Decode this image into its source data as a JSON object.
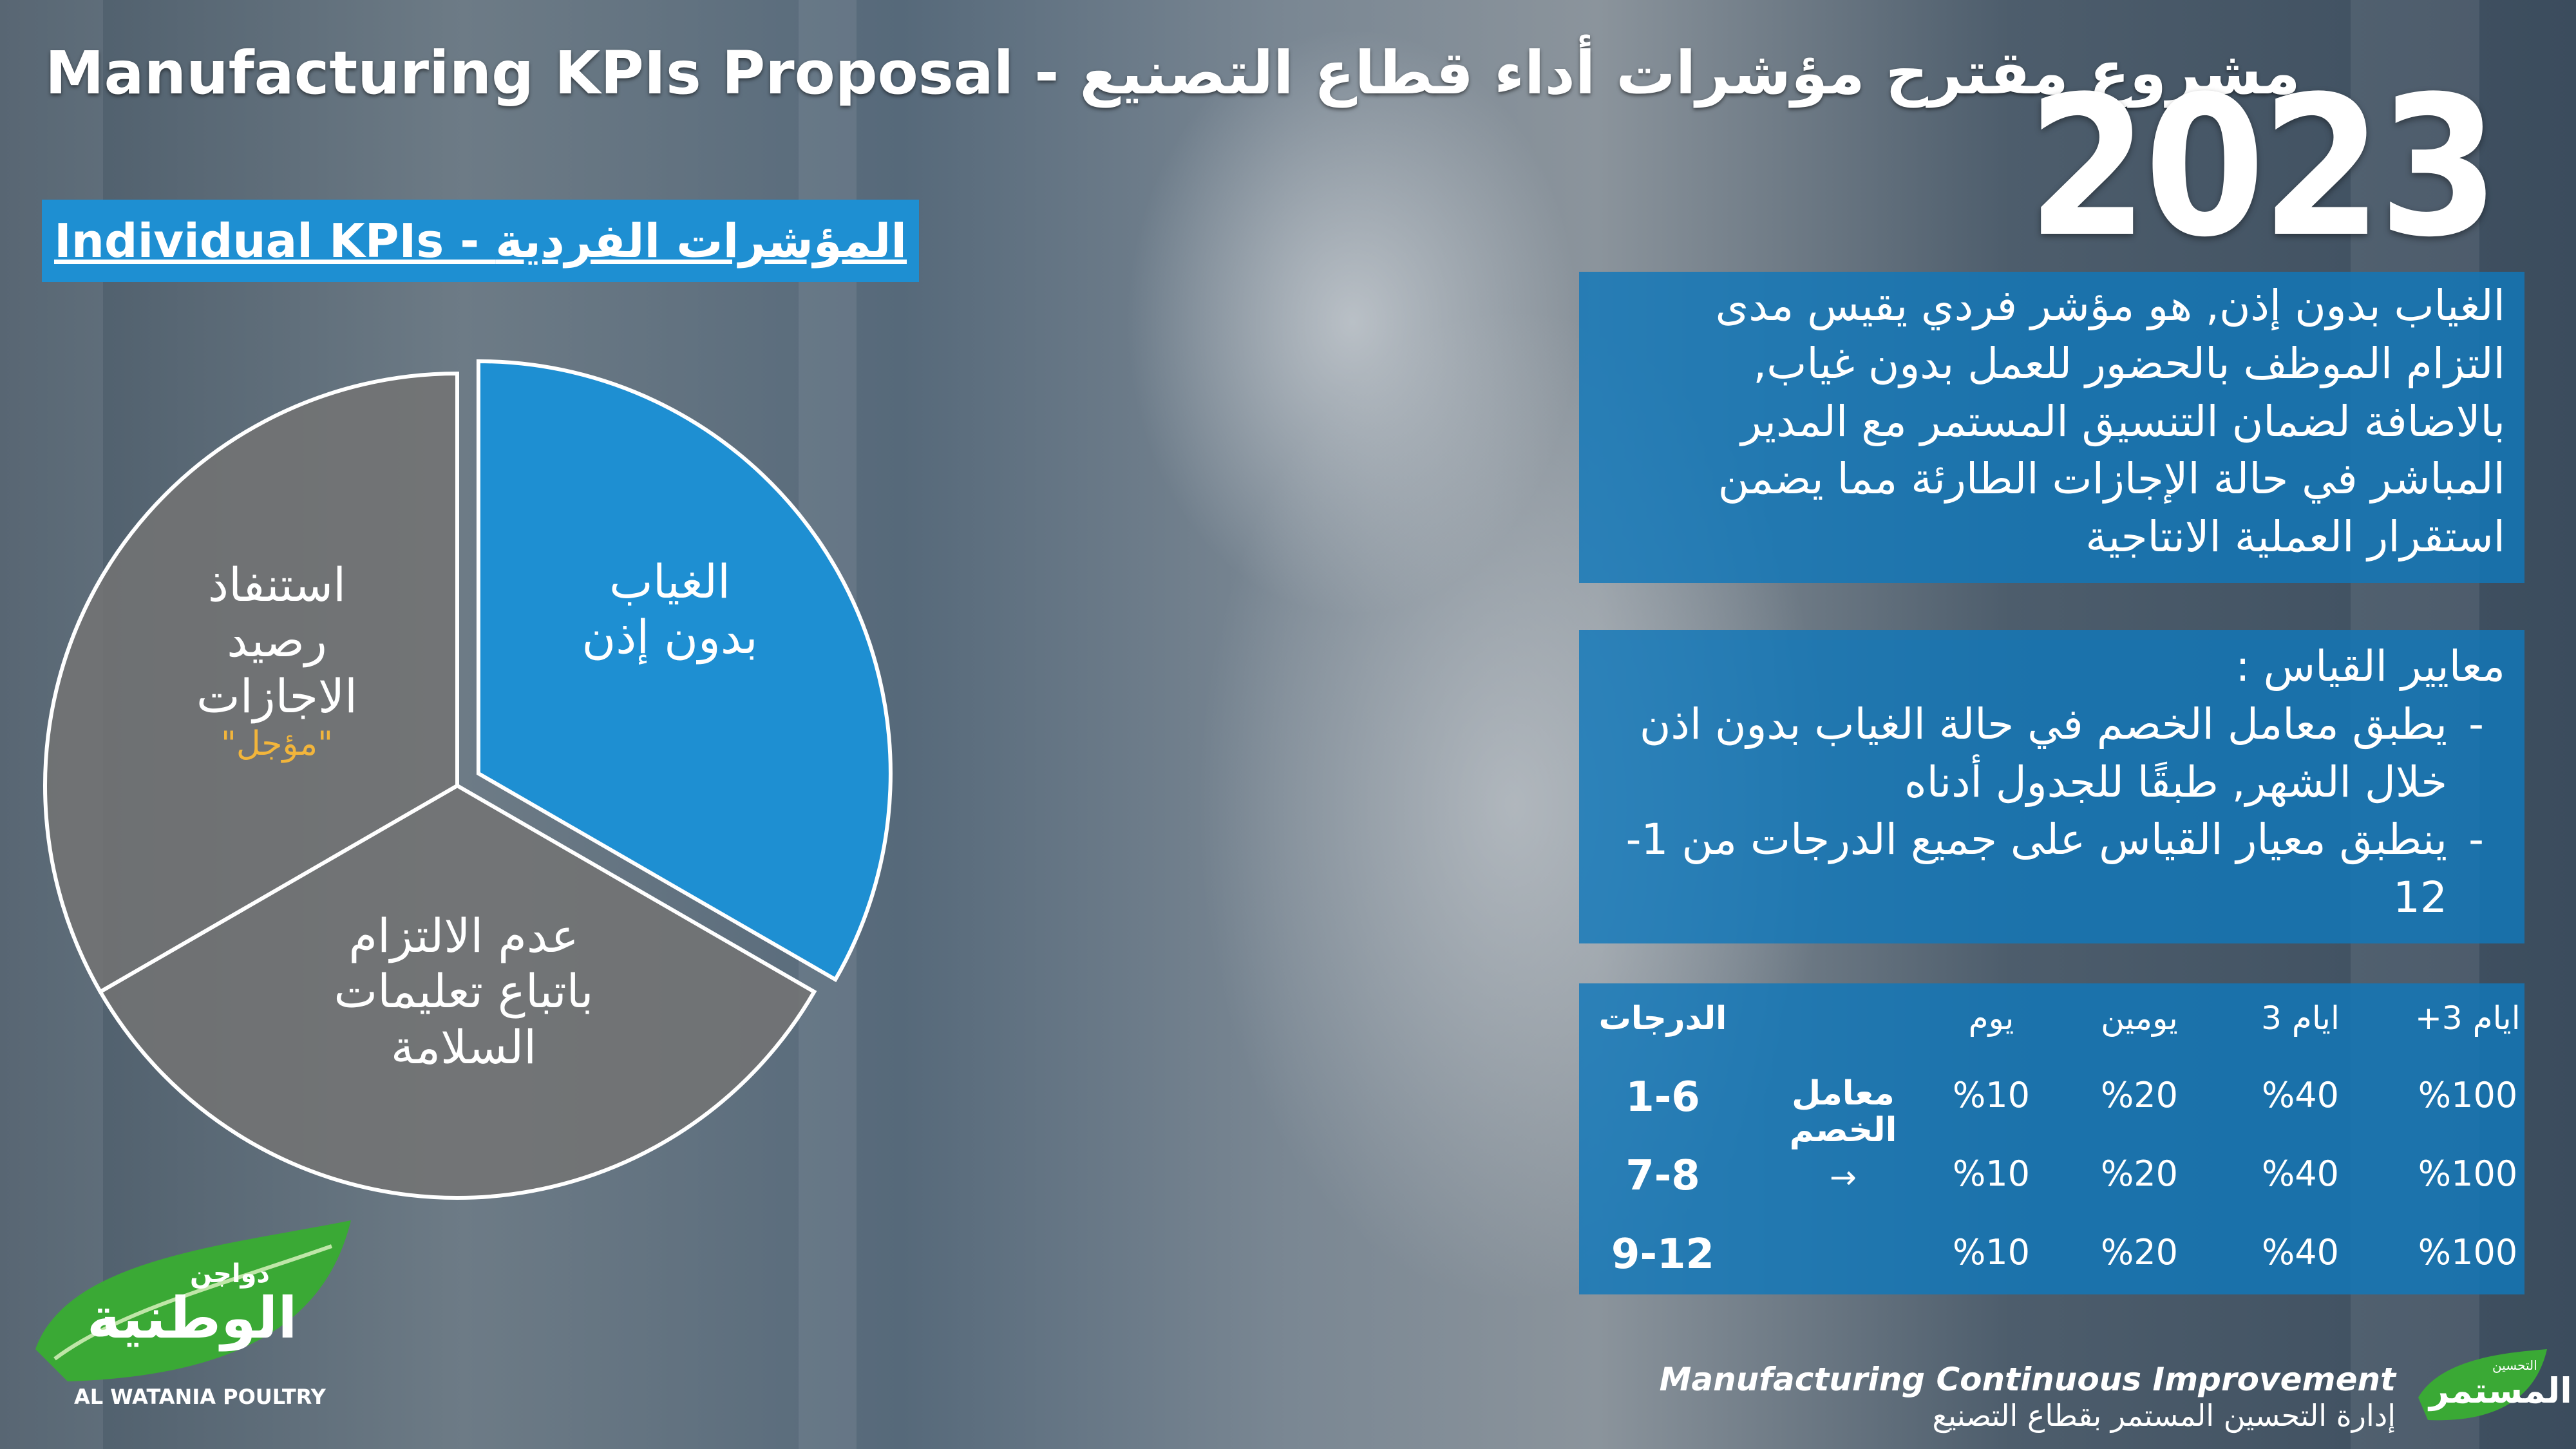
{
  "slide": {
    "title": "Manufacturing KPIs Proposal - مشروع مقترح مؤشرات أداء قطاع التصنيع",
    "year": "2023",
    "section_title": "Individual KPIs  - المؤشرات الفردية"
  },
  "pie": {
    "segments": [
      {
        "label": "الغياب\nبدون إذن",
        "color": "#1e8fd2",
        "value": 1
      },
      {
        "label": "عدم الالتزام\nباتباع تعليمات\nالسلامة",
        "color": "#737373",
        "value": 1
      },
      {
        "label": "استنفاذ\nرصيد\nالاجازات",
        "note": "\"مؤجل\"",
        "color": "#737373",
        "value": 1
      }
    ]
  },
  "description": {
    "text": "الغياب بدون إذن, هو مؤشر فردي يقيس مدى التزام الموظف بالحضور للعمل بدون غياب, بالاضافة لضمان التنسيق المستمر مع المدير المباشر في حالة الإجازات الطارئة مما يضمن استقرار العملية الانتاجية"
  },
  "criteria": {
    "heading": "معايير القياس :",
    "items": [
      "يطبق معامل الخصم في حالة الغياب بدون اذن خلال الشهر, طبقًا للجدول أدناه",
      "ينطبق معيار القياس على جميع الدرجات من 1-12"
    ]
  },
  "table": {
    "headers": {
      "grades": "الدرجات",
      "day1": "يوم",
      "day2": "يومين",
      "day3": "3 ايام",
      "day3plus": "+3 ايام"
    },
    "factor_label": "معامل\nالخصم",
    "arrow": "→",
    "rows": [
      {
        "grade": "1-6",
        "day1": "%10",
        "day2": "%20",
        "day3": "%40",
        "day3plus": "%100"
      },
      {
        "grade": "7-8",
        "day1": "%10",
        "day2": "%20",
        "day3": "%40",
        "day3plus": "%100"
      },
      {
        "grade": "9-12",
        "day1": "%10",
        "day2": "%20",
        "day3": "%40",
        "day3plus": "%100"
      }
    ]
  },
  "logos": {
    "left_ar_small": "دواجن",
    "left_ar_big": "الوطنية",
    "left_en": "AL WATANIA POULTRY",
    "right_ar_small": "التحسين",
    "right_ar_big": "المستمر"
  },
  "footer": {
    "en": "Manufacturing Continuous Improvement",
    "ar": "إدارة التحسين المستمر بقطاع التصنيع"
  },
  "colors": {
    "accent": "#1e8fd2",
    "panel": "#1178b9",
    "note": "#f2b53b",
    "logo_green": "#3aa935"
  }
}
